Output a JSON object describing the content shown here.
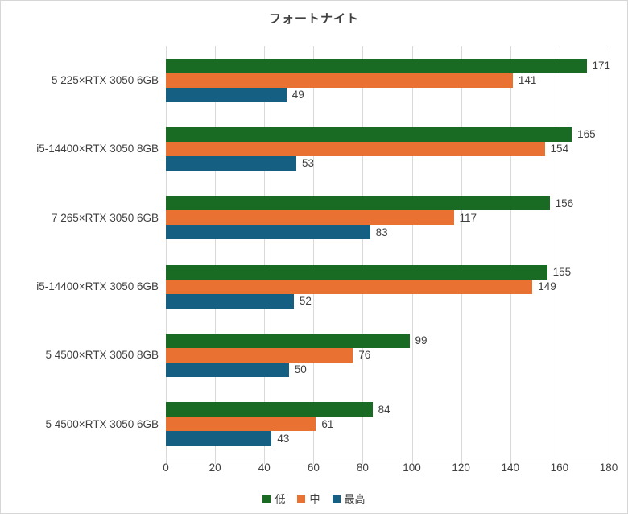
{
  "title": "フォートナイト",
  "chart_data": {
    "type": "bar",
    "orientation": "horizontal",
    "title": "フォートナイト",
    "categories": [
      "5 225×RTX 3050 6GB",
      "i5-14400×RTX 3050 8GB",
      "7 265×RTX 3050 6GB",
      "i5-14400×RTX 3050 6GB",
      "5 4500×RTX 3050 8GB",
      "5 4500×RTX 3050 6GB"
    ],
    "series": [
      {
        "name": "低",
        "color": "#196B24",
        "values": [
          171,
          165,
          156,
          155,
          99,
          84
        ]
      },
      {
        "name": "中",
        "color": "#E97132",
        "values": [
          141,
          154,
          117,
          149,
          76,
          61
        ]
      },
      {
        "name": "最高",
        "color": "#156082",
        "values": [
          49,
          53,
          83,
          52,
          50,
          43
        ]
      }
    ],
    "xlim": [
      0,
      180
    ],
    "xticks": [
      0,
      20,
      40,
      60,
      80,
      100,
      120,
      140,
      160,
      180
    ],
    "grid": true,
    "value_labels": true,
    "legend_position": "bottom"
  },
  "colors": {
    "background": "#FFFFFF",
    "border": "#D6D6D6",
    "gridline": "#D9D9D9",
    "text": "#404040"
  }
}
